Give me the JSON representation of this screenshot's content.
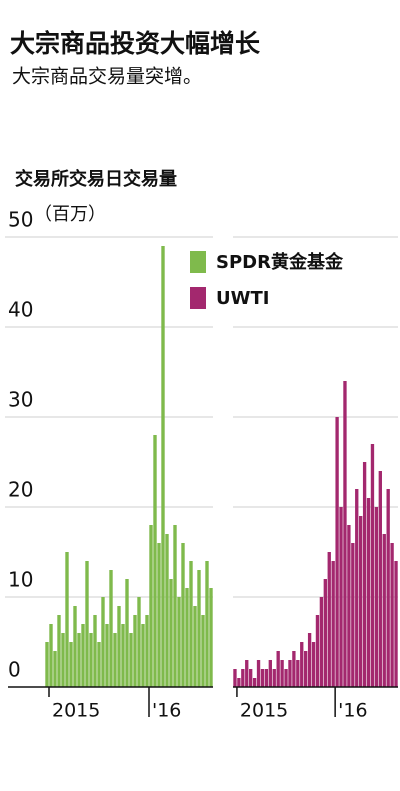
{
  "header": {
    "title": "大宗商品投资大幅增长",
    "subtitle": "大宗商品交易量突增。"
  },
  "chart_data": [
    {
      "type": "bar",
      "title": "交易所交易日交易量",
      "y_label": "（百万）",
      "x": [
        2014.98,
        2015.02,
        2015.06,
        2015.1,
        2015.14,
        2015.18,
        2015.22,
        2015.26,
        2015.3,
        2015.34,
        2015.38,
        2015.42,
        2015.46,
        2015.5,
        2015.54,
        2015.58,
        2015.62,
        2015.66,
        2015.7,
        2015.74,
        2015.78,
        2015.82,
        2015.86,
        2015.9,
        2015.94,
        2015.98,
        2016.02,
        2016.06,
        2016.1,
        2016.14,
        2016.18,
        2016.22,
        2016.26,
        2016.3,
        2016.34,
        2016.38,
        2016.42,
        2016.46,
        2016.5,
        2016.54,
        2016.58,
        2016.62
      ],
      "series": [
        {
          "name": "SPDR黄金基金",
          "color": "#7fba4c",
          "values": [
            5,
            7,
            4,
            8,
            6,
            15,
            5,
            9,
            6,
            7,
            14,
            6,
            8,
            5,
            10,
            7,
            13,
            6,
            9,
            7,
            12,
            6,
            8,
            10,
            7,
            8,
            18,
            28,
            16,
            49,
            17,
            12,
            18,
            10,
            16,
            11,
            14,
            9,
            13,
            8,
            14,
            11
          ]
        }
      ],
      "xlim": [
        2014.96,
        2016.64
      ],
      "xticks": [
        2015,
        {
          "value": 2016,
          "label": "'16"
        }
      ],
      "ylim": [
        0,
        50
      ],
      "yticks": [
        0,
        10,
        20,
        30,
        40,
        50
      ],
      "grid": true,
      "legend": "top-right"
    },
    {
      "type": "bar",
      "x": [
        2014.98,
        2015.02,
        2015.06,
        2015.1,
        2015.14,
        2015.18,
        2015.22,
        2015.26,
        2015.3,
        2015.34,
        2015.38,
        2015.42,
        2015.46,
        2015.5,
        2015.54,
        2015.58,
        2015.62,
        2015.66,
        2015.7,
        2015.74,
        2015.78,
        2015.82,
        2015.86,
        2015.9,
        2015.94,
        2015.98,
        2016.02,
        2016.06,
        2016.1,
        2016.14,
        2016.18,
        2016.22,
        2016.26,
        2016.3,
        2016.34,
        2016.38,
        2016.42,
        2016.46,
        2016.5,
        2016.54,
        2016.58,
        2016.62
      ],
      "series": [
        {
          "name": "UWTI",
          "color": "#a3286e",
          "values": [
            2,
            1,
            2,
            3,
            2,
            1,
            3,
            2,
            2,
            3,
            2,
            4,
            3,
            2,
            3,
            4,
            3,
            5,
            4,
            6,
            5,
            8,
            10,
            12,
            15,
            14,
            30,
            20,
            34,
            18,
            16,
            22,
            19,
            25,
            21,
            27,
            20,
            24,
            17,
            22,
            16,
            14
          ]
        }
      ],
      "xlim": [
        2014.96,
        2016.64
      ],
      "xticks": [
        2015,
        {
          "value": 2016,
          "label": "'16"
        }
      ],
      "ylim": [
        0,
        50
      ],
      "yticks": [
        0,
        10,
        20,
        30,
        40,
        50
      ],
      "grid": true
    }
  ]
}
